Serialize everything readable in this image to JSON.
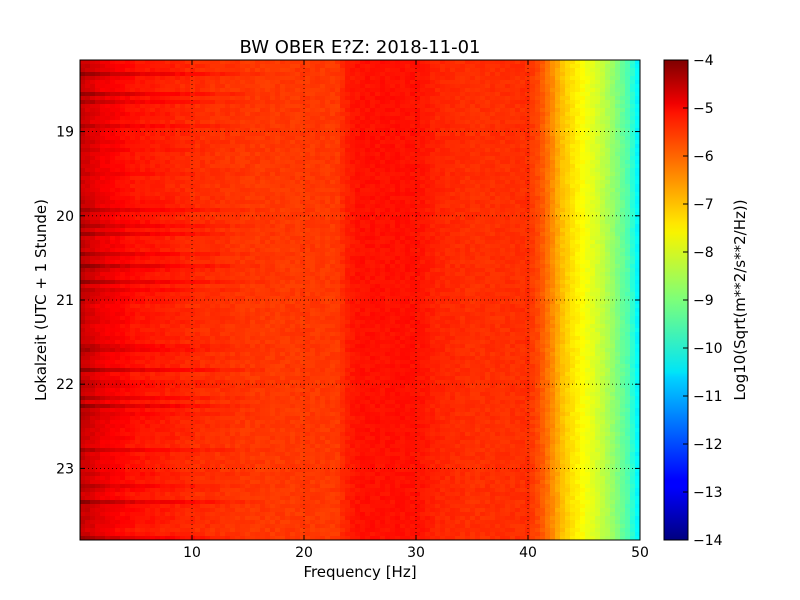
{
  "chart_data": {
    "type": "heatmap",
    "title": "BW OBER E?Z: 2018-11-01",
    "xlabel": "Frequency [Hz]",
    "ylabel": "Lokalzeit (UTC + 1 Stunde)",
    "xlim": [
      0,
      50
    ],
    "ylim": [
      18.15,
      23.85
    ],
    "y_inverted": true,
    "grid": true,
    "x_ticks": [
      {
        "value": 10,
        "label": "10"
      },
      {
        "value": 20,
        "label": "20"
      },
      {
        "value": 30,
        "label": "30"
      },
      {
        "value": 40,
        "label": "40"
      },
      {
        "value": 50,
        "label": "50"
      }
    ],
    "y_ticks": [
      {
        "value": 19,
        "label": "19"
      },
      {
        "value": 20,
        "label": "20"
      },
      {
        "value": 21,
        "label": "21"
      },
      {
        "value": 22,
        "label": "22"
      },
      {
        "value": 23,
        "label": "23"
      }
    ],
    "colormap": "jet",
    "colorbar": {
      "label": "Log10(Sqrt(m**2/s**2/Hz))",
      "range": [
        -14,
        -4
      ],
      "ticks": [
        {
          "value": -4,
          "label": "−4"
        },
        {
          "value": -5,
          "label": "−5"
        },
        {
          "value": -6,
          "label": "−6"
        },
        {
          "value": -7,
          "label": "−7"
        },
        {
          "value": -8,
          "label": "−8"
        },
        {
          "value": -9,
          "label": "−9"
        },
        {
          "value": -10,
          "label": "−10"
        },
        {
          "value": -11,
          "label": "−11"
        },
        {
          "value": -12,
          "label": "−12"
        },
        {
          "value": -13,
          "label": "−13"
        },
        {
          "value": -14,
          "label": "−14"
        }
      ]
    },
    "spectral_profile": {
      "frequency_hz": [
        0,
        1,
        2,
        5,
        8,
        10,
        15,
        20,
        23,
        24,
        25,
        27,
        30,
        32,
        35,
        38,
        40,
        41,
        42,
        43,
        44,
        45,
        46,
        47,
        48,
        49,
        50
      ],
      "log10_amplitude": [
        -4.8,
        -5.0,
        -5.2,
        -5.5,
        -5.6,
        -5.7,
        -5.8,
        -5.8,
        -5.8,
        -5.5,
        -5.4,
        -5.4,
        -5.4,
        -5.6,
        -5.7,
        -5.7,
        -5.7,
        -6.0,
        -6.5,
        -7.1,
        -7.5,
        -7.8,
        -8.1,
        -8.5,
        -9.0,
        -9.5,
        -10.5
      ]
    }
  }
}
